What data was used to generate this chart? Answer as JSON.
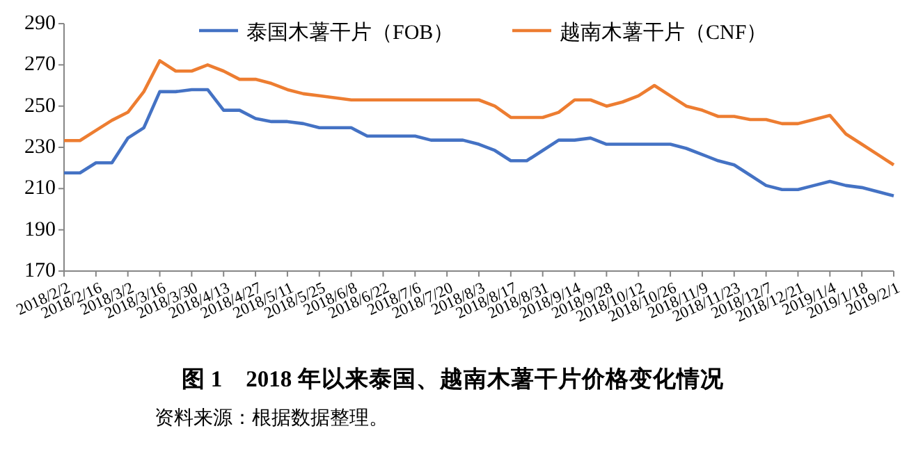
{
  "chart_data": {
    "type": "line",
    "title": "图 1　2018 年以来泰国、越南木薯干片价格变化情况",
    "annotations": [
      "资料来源：根据数据整理。"
    ],
    "categories": [
      "2018/2/2",
      null,
      "2018/2/16",
      null,
      "2018/3/2",
      null,
      "2018/3/16",
      null,
      "2018/3/30",
      null,
      "2018/4/13",
      null,
      "2018/4/27",
      null,
      "2018/5/11",
      null,
      "2018/5/25",
      null,
      "2018/6/8",
      null,
      "2018/6/22",
      null,
      "2018/7/6",
      null,
      "2018/7/20",
      null,
      "2018/8/3",
      null,
      "2018/8/17",
      null,
      "2018/8/31",
      null,
      "2018/9/14",
      null,
      "2018/9/28",
      null,
      "2018/10/12",
      null,
      "2018/10/26",
      null,
      "2018/11/9",
      null,
      "2018/11/23",
      null,
      "2018/12/7",
      null,
      "2018/12/21",
      null,
      "2019/1/4",
      null,
      "2019/1/18",
      null,
      "2019/2/1"
    ],
    "series": [
      {
        "name": "泰国木薯干片（FOB）",
        "color": "#4472c4",
        "values": [
          217.6,
          217.6,
          222.5,
          222.5,
          234.5,
          239.5,
          257,
          257,
          258,
          258,
          248,
          248,
          244,
          242.5,
          242.5,
          241.5,
          239.5,
          239.5,
          239.5,
          235.5,
          235.5,
          235.5,
          235.5,
          233.5,
          233.5,
          233.5,
          231.5,
          228.5,
          223.5,
          223.5,
          228.5,
          233.5,
          233.5,
          234.5,
          231.5,
          231.5,
          231.5,
          231.5,
          231.5,
          229.5,
          226.5,
          223.5,
          221.5,
          216.5,
          211.5,
          209.5,
          209.5,
          211.5,
          213.5,
          211.5,
          210.5,
          208.5,
          206.5
        ]
      },
      {
        "name": "越南木薯干片（CNF）",
        "color": "#ed7d31",
        "values": [
          233.3,
          233.3,
          238.2,
          243.1,
          247,
          257,
          272,
          267,
          267,
          270,
          267,
          263,
          263,
          261,
          258,
          256,
          255,
          254,
          253,
          253,
          253,
          253,
          253,
          253,
          253,
          253,
          253,
          250,
          244.5,
          244.5,
          244.5,
          247,
          253,
          253,
          250,
          252,
          255,
          260,
          255,
          250,
          248,
          245,
          245,
          243.5,
          243.5,
          241.5,
          241.5,
          243.5,
          245.5,
          236.5,
          231.5,
          226.5,
          221.5
        ]
      }
    ],
    "ylim": [
      170,
      290
    ],
    "yticks": [
      170,
      190,
      210,
      230,
      250,
      270,
      290
    ],
    "grid": false,
    "legend": "top",
    "marker": "none",
    "line_style": "solid"
  }
}
